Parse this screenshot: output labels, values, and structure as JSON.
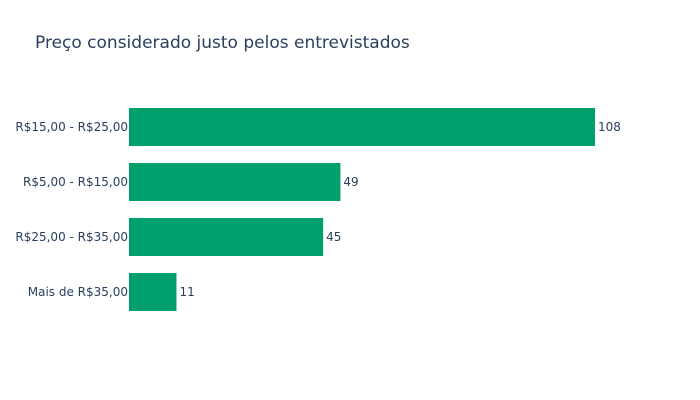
{
  "chart_data": {
    "type": "bar",
    "orientation": "horizontal",
    "title": "Preço considerado justo pelos entrevistados",
    "xlabel": "",
    "ylabel": "",
    "categories": [
      "R$15,00 - R$25,00",
      "R$5,00 - R$15,00",
      "R$25,00 - R$35,00",
      "Mais de R$35,00"
    ],
    "values": [
      108,
      49,
      45,
      11
    ],
    "data_labels": [
      "108",
      "49",
      "45",
      "11"
    ],
    "xlim": [
      0,
      108
    ],
    "grid": false,
    "legend": "none",
    "bar_color": "#00a06e"
  }
}
